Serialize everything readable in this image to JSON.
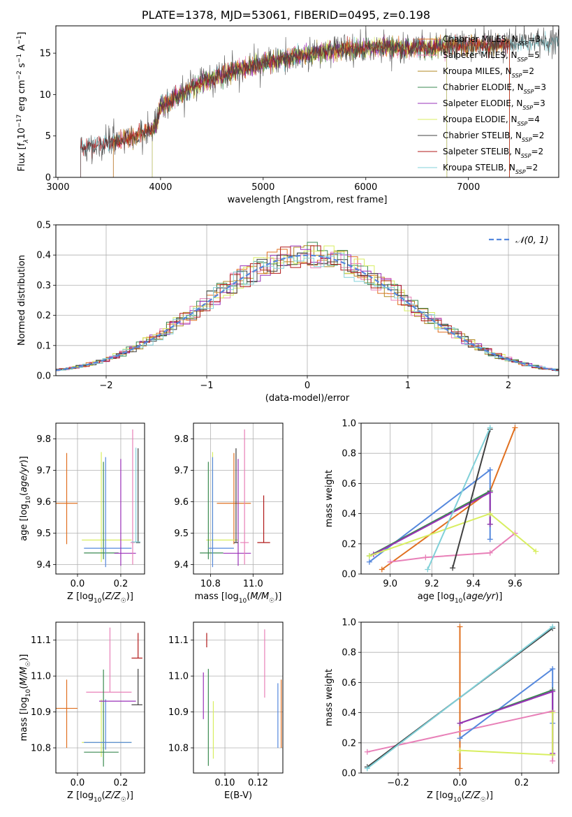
{
  "title": "PLATE=1378, MJD=53061, FIBERID=0495, z=0.198",
  "colors": {
    "chabrier_miles": "#e07020",
    "salpeter_miles": "#e880b8",
    "kroupa_miles": "#b08820",
    "chabrier_elodie": "#3a8a50",
    "salpeter_elodie": "#9a30b8",
    "kroupa_elodie": "#d8ee60",
    "chabrier_stelib": "#404040",
    "salpeter_stelib": "#b01818",
    "kroupa_stelib": "#80d0d8",
    "normal": "#5588dd"
  },
  "chart_data": [
    {
      "type": "line",
      "id": "spectrum",
      "xlabel": "wavelength [Angstrom, rest frame]",
      "ylabel": "Flux [f_λ 10^-17 erg cm^-2 s^-1 A^-1]",
      "xlim": [
        2980,
        7880
      ],
      "ylim": [
        0,
        18.3
      ],
      "xticks": [
        "3000",
        "4000",
        "5000",
        "6000",
        "7000"
      ],
      "yticks": [
        "0",
        "5",
        "10",
        "15"
      ],
      "continuum": {
        "x": [
          3220,
          3400,
          3600,
          3800,
          3950,
          4000,
          4200,
          4400,
          4600,
          4800,
          5000,
          5200,
          5400,
          5600,
          5800,
          6000,
          6200,
          6400,
          6600,
          6800,
          7000,
          7200,
          7400,
          7600,
          7880
        ],
        "y": [
          3.6,
          4.0,
          4.4,
          5.2,
          6.0,
          8.5,
          10.0,
          11.5,
          12.3,
          13.2,
          13.8,
          14.3,
          14.8,
          15.2,
          15.5,
          15.6,
          15.8,
          15.6,
          15.7,
          15.8,
          16.0,
          16.0,
          16.1,
          16.2,
          16.3
        ]
      },
      "legend": [
        {
          "label": "Chabrier MILES, N_SSP=3",
          "color_key": "chabrier_miles"
        },
        {
          "label": "Salpeter MILES, N_SSP=5",
          "color_key": "salpeter_miles"
        },
        {
          "label": "Kroupa MILES, N_SSP=2",
          "color_key": "kroupa_miles"
        },
        {
          "label": "Chabrier ELODIE, N_SSP=3",
          "color_key": "chabrier_elodie"
        },
        {
          "label": "Salpeter ELODIE, N_SSP=3",
          "color_key": "salpeter_elodie"
        },
        {
          "label": "Kroupa ELODIE, N_SSP=4",
          "color_key": "kroupa_elodie"
        },
        {
          "label": "Chabrier STELIB, N_SSP=2",
          "color_key": "chabrier_stelib"
        },
        {
          "label": "Salpeter STELIB, N_SSP=2",
          "color_key": "salpeter_stelib"
        },
        {
          "label": "Kroupa STELIB, N_SSP=2",
          "color_key": "kroupa_stelib"
        }
      ],
      "legend_loc": "upper right"
    },
    {
      "type": "line",
      "id": "residuals",
      "xlabel": "(data-model)/error",
      "ylabel": "Normed distribution",
      "xlim": [
        -2.5,
        2.5
      ],
      "ylim": [
        0,
        0.5
      ],
      "xticks": [
        "-2",
        "-1",
        "0",
        "1",
        "2"
      ],
      "yticks": [
        "0.0",
        "0.1",
        "0.2",
        "0.3",
        "0.4",
        "0.5"
      ],
      "bin_width": 0.1,
      "reference": {
        "label": "𝒩(0, 1)",
        "style": "dashed"
      },
      "legend_loc": "upper right"
    },
    {
      "type": "scatter",
      "id": "age_vs_Z",
      "xlabel": "Z [log10(Z/Z☉)]",
      "ylabel": "age [log10(age/yr)]",
      "xlim": [
        -0.1,
        0.31
      ],
      "ylim": [
        9.37,
        9.85
      ],
      "xticks": [
        "0.0",
        "0.2"
      ],
      "yticks": [
        "9.4",
        "9.5",
        "9.6",
        "9.7",
        "9.8"
      ],
      "points": [
        {
          "key": "chabrier_miles",
          "x": -0.05,
          "y": 9.595,
          "xerr": [
            0.05,
            0.05
          ],
          "yerr": [
            0.13,
            0.16
          ]
        },
        {
          "key": "kroupa_elodie",
          "x": 0.11,
          "y": 9.478,
          "xerr": [
            0.09,
            0.14
          ],
          "yerr": [
            0.07,
            0.28
          ]
        },
        {
          "key": "chabrier_elodie",
          "x": 0.12,
          "y": 9.437,
          "xerr": [
            0.09,
            0.07
          ],
          "yerr": [
            0.02,
            0.29
          ]
        },
        {
          "key": "normal",
          "x": 0.13,
          "y": 9.452,
          "xerr": [
            0.1,
            0.12
          ],
          "yerr": [
            0.06,
            0.29
          ]
        },
        {
          "key": "salpeter_elodie",
          "x": 0.2,
          "y": 9.436,
          "xerr": [
            0.03,
            0.07
          ],
          "yerr": [
            0.04,
            0.3
          ]
        },
        {
          "key": "salpeter_miles",
          "x": 0.255,
          "y": 9.47,
          "xerr": [
            0.01,
            0.01
          ],
          "yerr": [
            0.07,
            0.36
          ]
        },
        {
          "key": "chabrier_stelib",
          "x": 0.28,
          "y": 9.47,
          "xerr": [
            0.01,
            0.01
          ],
          "yerr": [
            0.0,
            0.3
          ]
        },
        {
          "key": "kroupa_stelib",
          "x": 0.27,
          "y": 9.472,
          "xerr": [
            0.02,
            0.02
          ],
          "yerr": [
            0.0,
            0.3
          ]
        }
      ]
    },
    {
      "type": "scatter",
      "id": "age_vs_mass",
      "xlabel": "mass [log10(M/M☉)]",
      "ylabel": "",
      "xlim": [
        10.72,
        11.14
      ],
      "ylim": [
        9.37,
        9.85
      ],
      "xticks": [
        "10.8",
        "11.0"
      ],
      "yticks": [
        "9.4",
        "9.5",
        "9.6",
        "9.7",
        "9.8"
      ],
      "points": [
        {
          "key": "chabrier_miles",
          "x": 10.91,
          "y": 9.595,
          "xerr": [
            0.08,
            0.08
          ],
          "yerr": [
            0.13,
            0.16
          ]
        },
        {
          "key": "kroupa_elodie",
          "x": 10.81,
          "y": 9.478,
          "xerr": [
            0.03,
            0.12
          ],
          "yerr": [
            0.07,
            0.28
          ]
        },
        {
          "key": "chabrier_elodie",
          "x": 10.79,
          "y": 9.437,
          "xerr": [
            0.04,
            0.07
          ],
          "yerr": [
            0.02,
            0.29
          ]
        },
        {
          "key": "normal",
          "x": 10.81,
          "y": 9.452,
          "xerr": [
            0.02,
            0.1
          ],
          "yerr": [
            0.06,
            0.29
          ]
        },
        {
          "key": "salpeter_elodie",
          "x": 10.93,
          "y": 9.436,
          "xerr": [
            0.07,
            0.06
          ],
          "yerr": [
            0.04,
            0.3
          ]
        },
        {
          "key": "salpeter_miles",
          "x": 10.96,
          "y": 9.47,
          "xerr": [
            0.02,
            0.02
          ],
          "yerr": [
            0.07,
            0.36
          ]
        },
        {
          "key": "chabrier_stelib",
          "x": 10.92,
          "y": 9.47,
          "xerr": [
            0.01,
            0.01
          ],
          "yerr": [
            0.0,
            0.3
          ]
        },
        {
          "key": "salpeter_stelib",
          "x": 11.05,
          "y": 9.47,
          "xerr": [
            0.03,
            0.03
          ],
          "yerr": [
            0.0,
            0.15
          ]
        }
      ]
    },
    {
      "type": "line",
      "id": "weight_vs_age",
      "xlabel": "age [log10(age/yr)]",
      "ylabel": "mass weight",
      "xlim": [
        8.86,
        9.81
      ],
      "ylim": [
        0,
        1.0
      ],
      "xticks": [
        "9.0",
        "9.2",
        "9.4",
        "9.6"
      ],
      "yticks": [
        "0.0",
        "0.2",
        "0.4",
        "0.6",
        "0.8",
        "1.0"
      ],
      "series": [
        {
          "key": "chabrier_miles",
          "x": [
            8.96,
            9.48,
            9.6
          ],
          "y": [
            0.03,
            0.55,
            0.97
          ]
        },
        {
          "key": "salpeter_miles",
          "x": [
            9.0,
            9.17,
            9.48,
            9.6
          ],
          "y": [
            0.08,
            0.11,
            0.14,
            0.27
          ]
        },
        {
          "key": "normal",
          "x": [
            8.9,
            9.48,
            9.48
          ],
          "y": [
            0.08,
            0.69,
            0.23
          ]
        },
        {
          "key": "chabrier_elodie",
          "x": [
            8.9,
            9.48,
            9.48
          ],
          "y": [
            0.12,
            0.55,
            0.33
          ]
        },
        {
          "key": "salpeter_elodie",
          "x": [
            8.92,
            9.48,
            9.48
          ],
          "y": [
            0.13,
            0.54,
            0.33
          ]
        },
        {
          "key": "kroupa_elodie",
          "x": [
            8.9,
            9.48,
            9.7
          ],
          "y": [
            0.12,
            0.4,
            0.15
          ]
        },
        {
          "key": "chabrier_stelib",
          "x": [
            9.3,
            9.48
          ],
          "y": [
            0.04,
            0.96
          ]
        },
        {
          "key": "kroupa_stelib",
          "x": [
            9.18,
            9.48
          ],
          "y": [
            0.03,
            0.97
          ]
        }
      ]
    },
    {
      "type": "scatter",
      "id": "mass_vs_Z",
      "xlabel": "Z [log10(Z/Z☉)]",
      "ylabel": "mass [log10(M/M☉)]",
      "xlim": [
        -0.1,
        0.31
      ],
      "ylim": [
        10.73,
        11.15
      ],
      "xticks": [
        "0.0",
        "0.2"
      ],
      "yticks": [
        "10.8",
        "10.9",
        "11.0",
        "11.1"
      ],
      "points": [
        {
          "key": "chabrier_miles",
          "x": -0.05,
          "y": 10.91,
          "xerr": [
            0.05,
            0.05
          ],
          "yerr": [
            0.11,
            0.08
          ]
        },
        {
          "key": "salpeter_miles",
          "x": 0.15,
          "y": 10.955,
          "xerr": [
            0.11,
            0.1
          ],
          "yerr": [
            0.0,
            0.18
          ]
        },
        {
          "key": "kroupa_elodie",
          "x": 0.11,
          "y": 10.815,
          "xerr": [
            0.09,
            0.14
          ],
          "yerr": [
            0.04,
            0.12
          ]
        },
        {
          "key": "chabrier_elodie",
          "x": 0.12,
          "y": 10.788,
          "xerr": [
            0.09,
            0.07
          ],
          "yerr": [
            0.04,
            0.23
          ]
        },
        {
          "key": "normal",
          "x": 0.13,
          "y": 10.815,
          "xerr": [
            0.1,
            0.12
          ],
          "yerr": [
            0.02,
            0.12
          ]
        },
        {
          "key": "salpeter_elodie",
          "x": 0.2,
          "y": 10.93,
          "xerr": [
            0.1,
            0.07
          ],
          "yerr": [
            0.0,
            0.0
          ]
        },
        {
          "key": "chabrier_stelib",
          "x": 0.28,
          "y": 10.92,
          "xerr": [
            0.03,
            0.02
          ],
          "yerr": [
            0.0,
            0.1
          ]
        },
        {
          "key": "salpeter_stelib",
          "x": 0.28,
          "y": 11.05,
          "xerr": [
            0.03,
            0.02
          ],
          "yerr": [
            0.0,
            0.07
          ]
        }
      ]
    },
    {
      "type": "scatter",
      "id": "mass_vs_ebv",
      "xlabel": "E(B-V)",
      "ylabel": "",
      "xlim": [
        0.081,
        0.135
      ],
      "ylim": [
        10.73,
        11.15
      ],
      "xticks": [
        "0.10",
        "0.12"
      ],
      "yticks": [
        "10.8",
        "10.9",
        "11.0",
        "11.1"
      ],
      "points": [
        {
          "key": "salpeter_elodie",
          "x": 0.087,
          "y": 10.95,
          "yerr": [
            0.07,
            0.06
          ]
        },
        {
          "key": "salpeter_stelib",
          "x": 0.089,
          "y": 11.1,
          "yerr": [
            0.02,
            0.02
          ]
        },
        {
          "key": "chabrier_elodie",
          "x": 0.09,
          "y": 10.9,
          "yerr": [
            0.15,
            0.12
          ]
        },
        {
          "key": "kroupa_elodie",
          "x": 0.093,
          "y": 10.85,
          "yerr": [
            0.08,
            0.08
          ]
        },
        {
          "key": "salpeter_miles",
          "x": 0.124,
          "y": 11.03,
          "yerr": [
            0.09,
            0.1
          ]
        },
        {
          "key": "normal",
          "x": 0.132,
          "y": 10.89,
          "yerr": [
            0.09,
            0.09
          ]
        },
        {
          "key": "chabrier_miles",
          "x": 0.134,
          "y": 10.9,
          "yerr": [
            0.1,
            0.09
          ]
        }
      ]
    },
    {
      "type": "line",
      "id": "weight_vs_Z",
      "xlabel": "Z [log10(Z/Z☉)]",
      "ylabel": "mass weight",
      "xlim": [
        -0.32,
        0.32
      ],
      "ylim": [
        0,
        1.0
      ],
      "xticks": [
        "-0.2",
        "0.0",
        "0.2"
      ],
      "yticks": [
        "0.0",
        "0.2",
        "0.4",
        "0.6",
        "0.8",
        "1.0"
      ],
      "series": [
        {
          "key": "chabrier_miles",
          "x": [
            0.0,
            0.0
          ],
          "y": [
            0.03,
            0.97
          ]
        },
        {
          "key": "salpeter_miles",
          "x": [
            -0.3,
            0.3,
            0.3
          ],
          "y": [
            0.14,
            0.41,
            0.08
          ]
        },
        {
          "key": "normal",
          "x": [
            0.0,
            0.3,
            0.3
          ],
          "y": [
            0.23,
            0.69,
            0.33
          ]
        },
        {
          "key": "chabrier_elodie",
          "x": [
            0.0,
            0.3,
            0.3
          ],
          "y": [
            0.33,
            0.55,
            0.12
          ]
        },
        {
          "key": "salpeter_elodie",
          "x": [
            0.0,
            0.3,
            0.3
          ],
          "y": [
            0.33,
            0.54,
            0.13
          ]
        },
        {
          "key": "kroupa_elodie",
          "x": [
            0.0,
            0.3,
            0.3
          ],
          "y": [
            0.15,
            0.12,
            0.4
          ]
        },
        {
          "key": "chabrier_stelib",
          "x": [
            -0.3,
            0.3
          ],
          "y": [
            0.04,
            0.96
          ]
        },
        {
          "key": "kroupa_stelib",
          "x": [
            -0.3,
            0.3
          ],
          "y": [
            0.03,
            0.97
          ]
        }
      ]
    }
  ]
}
